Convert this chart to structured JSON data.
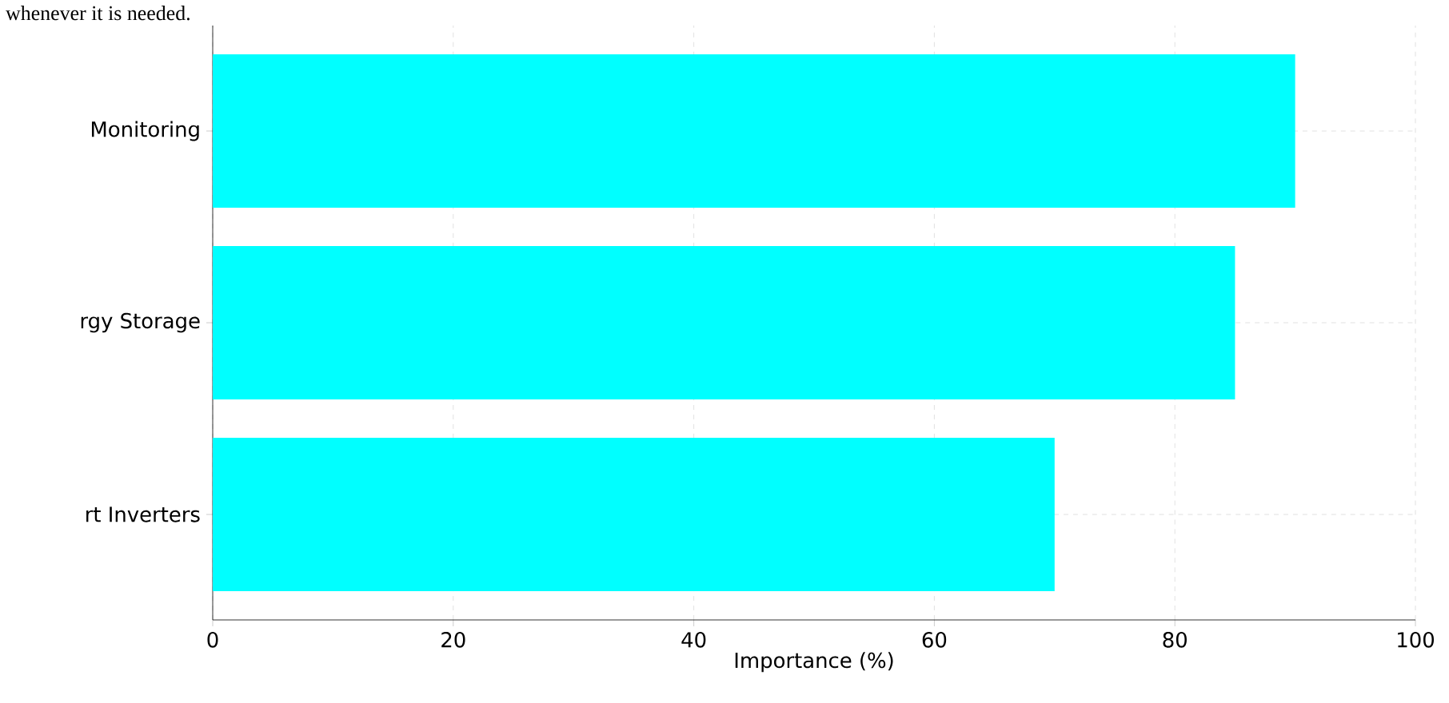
{
  "chart_data": {
    "type": "bar",
    "orientation": "horizontal",
    "xlabel": "Importance (%)",
    "annotations": [
      "whenever it is needed."
    ],
    "categories": [
      "Monitoring",
      "rgy Storage",
      "rt Inverters"
    ],
    "values": [
      90,
      85,
      70
    ],
    "color": "#00ffff",
    "xlim": [
      0,
      100
    ],
    "xticks": [
      0,
      20,
      40,
      60,
      80,
      100
    ],
    "grid": true
  }
}
